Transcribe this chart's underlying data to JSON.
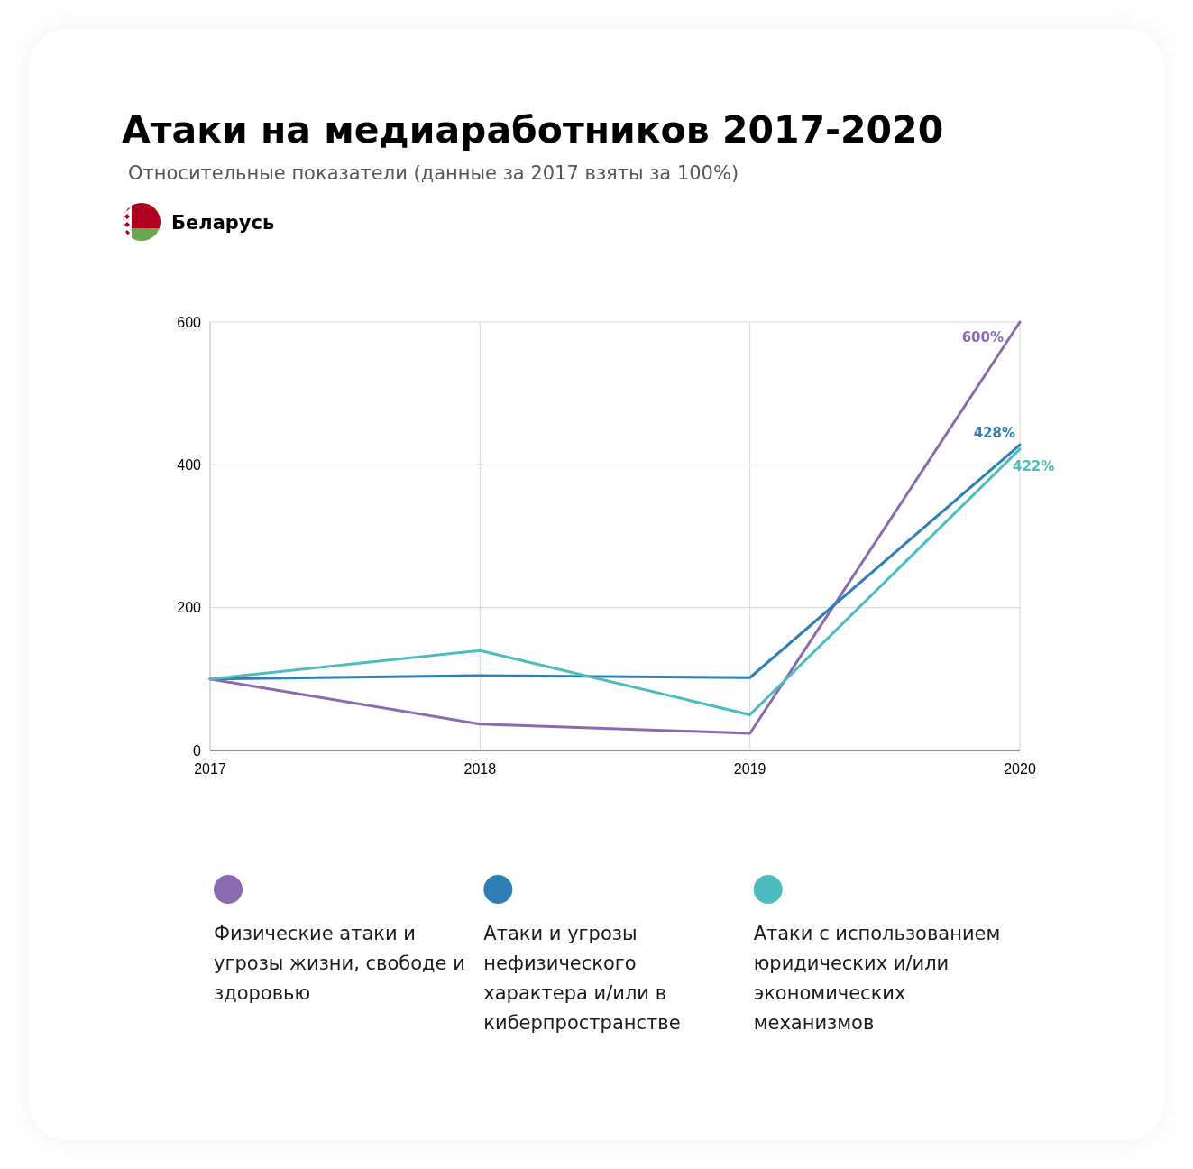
{
  "chart_data": {
    "type": "line",
    "title": "Атаки на медиаработников 2017-2020",
    "subtitle": "Относительные показатели (данные за 2017 взяты за 100%)",
    "annotations": [
      "Беларусь"
    ],
    "x": [
      2017,
      2018,
      2019,
      2020
    ],
    "xlim": [
      2017,
      2020
    ],
    "xticks": [
      2017,
      2018,
      2019,
      2020
    ],
    "ylim": [
      0,
      600
    ],
    "yticks": [
      0,
      200,
      400,
      600
    ],
    "grid": true,
    "legend": "bottom",
    "series": [
      {
        "name": "Физические атаки и угрозы жизни, свободе и здоровью",
        "color": "#8a6bb1",
        "values": [
          100,
          37,
          24,
          600
        ],
        "value_labels": [
          null,
          null,
          null,
          "600%"
        ]
      },
      {
        "name": "Атаки и угрозы нефизического характера и/или в киберпространстве",
        "color": "#2f7fb6",
        "values": [
          100,
          105,
          102,
          428
        ],
        "value_labels": [
          null,
          null,
          null,
          "428%"
        ]
      },
      {
        "name": "Атаки с использованием юридических и/или экономических механизмов",
        "color": "#4ebcbe",
        "values": [
          100,
          140,
          50,
          422
        ],
        "value_labels": [
          null,
          null,
          null,
          "422%"
        ]
      }
    ]
  }
}
